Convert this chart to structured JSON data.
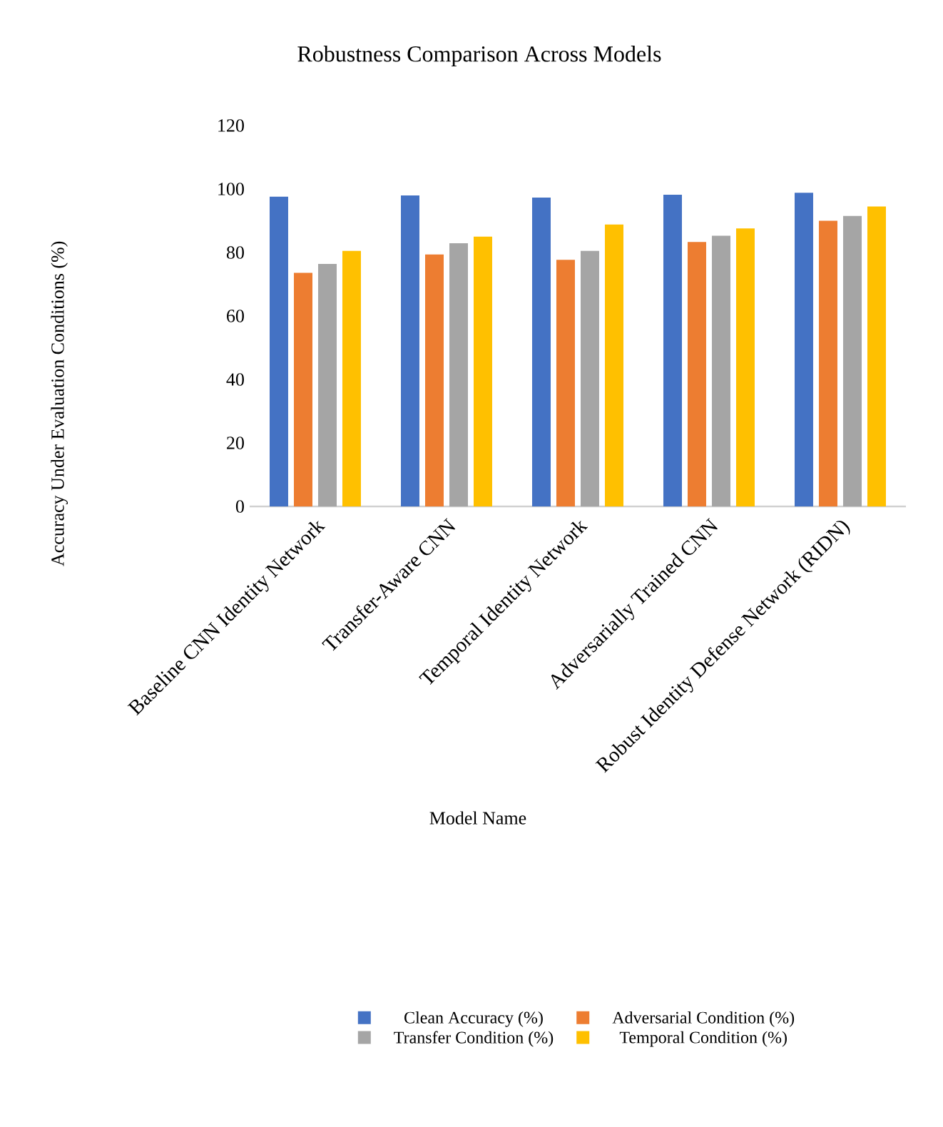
{
  "chart_data": {
    "type": "bar",
    "title": "Robustness Comparison Across Models",
    "xlabel": "Model Name",
    "ylabel": "Accuracy Under Evaluation Conditions (%)",
    "categories": [
      "Baseline CNN Identity Network",
      "Transfer-Aware CNN",
      "Temporal Identity Network",
      "Adversarially Trained CNN",
      "Robust Identity Defense Network (RIDN)"
    ],
    "series": [
      {
        "name": "Clean Accuracy (%)",
        "color": "#4472c4",
        "values": [
          97.6,
          98.0,
          97.3,
          98.2,
          98.8
        ]
      },
      {
        "name": "Adversarial Condition (%)",
        "color": "#ed7d31",
        "values": [
          73.6,
          79.4,
          77.7,
          83.3,
          90.0
        ]
      },
      {
        "name": "Transfer Condition (%)",
        "color": "#a5a5a5",
        "values": [
          76.4,
          82.9,
          80.5,
          85.3,
          91.5
        ]
      },
      {
        "name": "Temporal Condition (%)",
        "color": "#ffc000",
        "values": [
          80.5,
          85.0,
          88.8,
          87.6,
          94.5
        ]
      }
    ],
    "ylim": [
      0,
      120
    ],
    "yticks": [
      0,
      20,
      40,
      60,
      80,
      100,
      120
    ],
    "legend": "bottom"
  }
}
